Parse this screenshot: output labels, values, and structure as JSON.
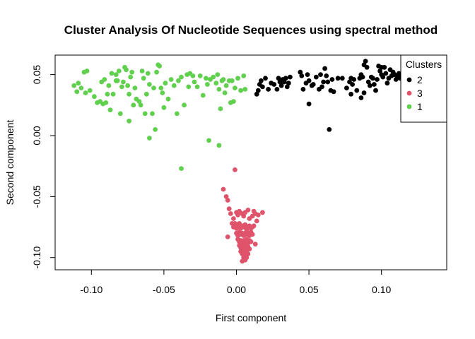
{
  "chart_data": {
    "type": "scatter",
    "title": "Cluster Analysis Of Nucleotide Sequences using spectral method",
    "xlabel": "First component",
    "ylabel": "Second component",
    "xlim": [
      -0.125,
      0.145
    ],
    "ylim": [
      -0.11,
      0.066
    ],
    "x_ticks": [
      -0.1,
      -0.05,
      0.0,
      0.05,
      0.1
    ],
    "x_tick_labels": [
      "-0.10",
      "-0.05",
      "0.00",
      "0.05",
      "0.10"
    ],
    "y_ticks": [
      -0.1,
      -0.05,
      0.0,
      0.05
    ],
    "y_tick_labels": [
      "-0.10",
      "-0.05",
      "0.00",
      "0.05"
    ],
    "grid": false,
    "legend": {
      "title": "Clusters",
      "position": "top-right",
      "order": [
        "2",
        "3",
        "1"
      ]
    },
    "series": [
      {
        "name": "1",
        "color": "#61D04F",
        "points": [
          [
            -0.112,
            0.041
          ],
          [
            -0.11,
            0.036
          ],
          [
            -0.109,
            0.043
          ],
          [
            -0.107,
            0.039
          ],
          [
            -0.104,
            0.035
          ],
          [
            -0.101,
            0.037
          ],
          [
            -0.105,
            0.052
          ],
          [
            -0.103,
            0.053
          ],
          [
            -0.098,
            0.032
          ],
          [
            -0.094,
            0.028
          ],
          [
            -0.092,
            0.026
          ],
          [
            -0.09,
            0.027
          ],
          [
            -0.093,
            0.044
          ],
          [
            -0.091,
            0.046
          ],
          [
            -0.088,
            0.041
          ],
          [
            -0.089,
            0.034
          ],
          [
            -0.087,
            0.021
          ],
          [
            -0.085,
            0.034
          ],
          [
            -0.083,
            0.045
          ],
          [
            -0.083,
            0.05
          ],
          [
            -0.081,
            0.053
          ],
          [
            -0.079,
            0.04
          ],
          [
            -0.078,
            0.044
          ],
          [
            -0.077,
            0.056
          ],
          [
            -0.076,
            0.054
          ],
          [
            -0.074,
            0.034
          ],
          [
            -0.075,
            0.041
          ],
          [
            -0.073,
            0.048
          ],
          [
            -0.072,
            0.052
          ],
          [
            -0.071,
            0.025
          ],
          [
            -0.07,
            0.039
          ],
          [
            -0.069,
            0.03
          ],
          [
            -0.067,
            0.028
          ],
          [
            -0.065,
            0.053
          ],
          [
            -0.064,
            0.047
          ],
          [
            -0.062,
            0.034
          ],
          [
            -0.061,
            0.051
          ],
          [
            -0.06,
            0.042
          ],
          [
            -0.058,
            0.018
          ],
          [
            -0.057,
            0.039
          ],
          [
            -0.055,
            0.052
          ],
          [
            -0.054,
            0.058
          ],
          [
            -0.053,
            0.057
          ],
          [
            -0.052,
            0.039
          ],
          [
            -0.051,
            0.035
          ],
          [
            -0.05,
            0.023
          ],
          [
            -0.049,
            0.043
          ],
          [
            -0.047,
            0.03
          ],
          [
            -0.045,
            0.046
          ],
          [
            -0.043,
            0.041
          ],
          [
            -0.041,
            0.018
          ],
          [
            -0.04,
            0.045
          ],
          [
            -0.038,
            0.048
          ],
          [
            -0.036,
            0.025
          ],
          [
            -0.034,
            0.05
          ],
          [
            -0.032,
            0.051
          ],
          [
            -0.03,
            0.049
          ],
          [
            -0.029,
            0.044
          ],
          [
            -0.027,
            0.04
          ],
          [
            -0.025,
            0.049
          ],
          [
            -0.023,
            0.033
          ],
          [
            -0.021,
            0.047
          ],
          [
            -0.02,
            0.042
          ],
          [
            -0.018,
            0.046
          ],
          [
            -0.016,
            0.048
          ],
          [
            -0.014,
            0.043
          ],
          [
            -0.013,
            0.05
          ],
          [
            -0.012,
            0.038
          ],
          [
            -0.01,
            0.045
          ],
          [
            -0.009,
            0.046
          ],
          [
            -0.008,
            0.035
          ],
          [
            -0.007,
            0.041
          ],
          [
            -0.005,
            0.045
          ],
          [
            -0.003,
            0.045
          ],
          [
            -0.002,
            0.028
          ],
          [
            -0.001,
            0.039
          ],
          [
            0.001,
            0.047
          ],
          [
            0.003,
            0.037
          ],
          [
            0.005,
            0.049
          ],
          [
            0.006,
            0.038
          ],
          [
            -0.004,
            0.027
          ],
          [
            -0.066,
            0.025
          ],
          [
            -0.06,
            -0.002
          ],
          [
            -0.056,
            0.005
          ],
          [
            -0.063,
            0.018
          ],
          [
            -0.074,
            0.012
          ],
          [
            -0.08,
            0.018
          ],
          [
            -0.096,
            0.027
          ],
          [
            -0.019,
            -0.004
          ],
          [
            -0.012,
            -0.008
          ],
          [
            -0.038,
            -0.027
          ],
          [
            -0.086,
            0.051
          ],
          [
            -0.082,
            0.045
          ],
          [
            -0.011,
            0.022
          ],
          [
            -0.033,
            0.04
          ]
        ]
      },
      {
        "name": "2",
        "color": "#000000",
        "points": [
          [
            0.014,
            0.034
          ],
          [
            0.015,
            0.037
          ],
          [
            0.016,
            0.042
          ],
          [
            0.017,
            0.045
          ],
          [
            0.018,
            0.04
          ],
          [
            0.02,
            0.047
          ],
          [
            0.022,
            0.038
          ],
          [
            0.024,
            0.043
          ],
          [
            0.026,
            0.042
          ],
          [
            0.028,
            0.038
          ],
          [
            0.03,
            0.044
          ],
          [
            0.031,
            0.041
          ],
          [
            0.032,
            0.046
          ],
          [
            0.033,
            0.044
          ],
          [
            0.034,
            0.047
          ],
          [
            0.035,
            0.04
          ],
          [
            0.036,
            0.043
          ],
          [
            0.037,
            0.048
          ],
          [
            0.044,
            0.052
          ],
          [
            0.045,
            0.049
          ],
          [
            0.046,
            0.038
          ],
          [
            0.048,
            0.043
          ],
          [
            0.049,
            0.05
          ],
          [
            0.05,
            0.045
          ],
          [
            0.05,
            0.026
          ],
          [
            0.052,
            0.041
          ],
          [
            0.053,
            0.042
          ],
          [
            0.055,
            0.048
          ],
          [
            0.057,
            0.038
          ],
          [
            0.058,
            0.05
          ],
          [
            0.059,
            0.04
          ],
          [
            0.06,
            0.044
          ],
          [
            0.061,
            0.055
          ],
          [
            0.062,
            0.049
          ],
          [
            0.063,
            0.044
          ],
          [
            0.064,
            0.005
          ],
          [
            0.065,
            0.037
          ],
          [
            0.066,
            0.046
          ],
          [
            0.067,
            0.036
          ],
          [
            0.073,
            0.047
          ],
          [
            0.076,
            0.039
          ],
          [
            0.078,
            0.044
          ],
          [
            0.079,
            0.034
          ],
          [
            0.08,
            0.042
          ],
          [
            0.081,
            0.046
          ],
          [
            0.083,
            0.037
          ],
          [
            0.085,
            0.047
          ],
          [
            0.086,
            0.05
          ],
          [
            0.087,
            0.048
          ],
          [
            0.088,
            0.058
          ],
          [
            0.089,
            0.061
          ],
          [
            0.09,
            0.056
          ],
          [
            0.091,
            0.044
          ],
          [
            0.092,
            0.041
          ],
          [
            0.093,
            0.048
          ],
          [
            0.094,
            0.047
          ],
          [
            0.095,
            0.042
          ],
          [
            0.096,
            0.037
          ],
          [
            0.097,
            0.046
          ],
          [
            0.098,
            0.057
          ],
          [
            0.099,
            0.053
          ],
          [
            0.1,
            0.05
          ],
          [
            0.101,
            0.048
          ],
          [
            0.102,
            0.056
          ],
          [
            0.103,
            0.051
          ],
          [
            0.104,
            0.043
          ],
          [
            0.105,
            0.047
          ],
          [
            0.106,
            0.054
          ],
          [
            0.107,
            0.049
          ],
          [
            0.108,
            0.052
          ],
          [
            0.109,
            0.05
          ],
          [
            0.11,
            0.046
          ],
          [
            0.111,
            0.048
          ],
          [
            0.112,
            0.051
          ],
          [
            0.113,
            0.047
          ],
          [
            0.114,
            0.049
          ],
          [
            0.115,
            0.052
          ],
          [
            0.116,
            0.048
          ],
          [
            0.118,
            0.05
          ],
          [
            0.088,
            0.035
          ],
          [
            0.079,
            0.047
          ],
          [
            0.07,
            0.047
          ],
          [
            0.086,
            0.031
          ],
          [
            0.1,
            0.056
          ],
          [
            0.029,
            0.047
          ]
        ]
      },
      {
        "name": "3",
        "color": "#DF536B",
        "points": [
          [
            -0.001,
            -0.028
          ],
          [
            -0.009,
            -0.044
          ],
          [
            -0.007,
            -0.05
          ],
          [
            -0.006,
            -0.053
          ],
          [
            -0.005,
            -0.06
          ],
          [
            -0.004,
            -0.064
          ],
          [
            0.0,
            -0.063
          ],
          [
            0.001,
            -0.065
          ],
          [
            0.002,
            -0.062
          ],
          [
            0.004,
            -0.064
          ],
          [
            0.005,
            -0.066
          ],
          [
            0.006,
            -0.063
          ],
          [
            0.008,
            -0.061
          ],
          [
            0.009,
            -0.068
          ],
          [
            0.011,
            -0.066
          ],
          [
            0.012,
            -0.062
          ],
          [
            0.013,
            -0.064
          ],
          [
            0.015,
            -0.065
          ],
          [
            0.018,
            -0.063
          ],
          [
            -0.003,
            -0.072
          ],
          [
            -0.002,
            -0.075
          ],
          [
            -0.001,
            -0.072
          ],
          [
            0.0,
            -0.076
          ],
          [
            0.001,
            -0.074
          ],
          [
            0.002,
            -0.072
          ],
          [
            0.003,
            -0.076
          ],
          [
            0.004,
            -0.074
          ],
          [
            0.005,
            -0.075
          ],
          [
            0.006,
            -0.073
          ],
          [
            0.007,
            -0.077
          ],
          [
            0.008,
            -0.075
          ],
          [
            0.009,
            -0.074
          ],
          [
            0.01,
            -0.076
          ],
          [
            0.011,
            -0.075
          ],
          [
            0.012,
            -0.074
          ],
          [
            0.0,
            -0.08
          ],
          [
            0.001,
            -0.082
          ],
          [
            0.002,
            -0.079
          ],
          [
            0.003,
            -0.081
          ],
          [
            0.004,
            -0.08
          ],
          [
            0.005,
            -0.082
          ],
          [
            0.006,
            -0.08
          ],
          [
            0.007,
            -0.081
          ],
          [
            0.008,
            -0.08
          ],
          [
            0.009,
            -0.082
          ],
          [
            0.01,
            -0.079
          ],
          [
            0.011,
            -0.081
          ],
          [
            0.001,
            -0.085
          ],
          [
            0.002,
            -0.087
          ],
          [
            0.003,
            -0.086
          ],
          [
            0.004,
            -0.088
          ],
          [
            0.005,
            -0.086
          ],
          [
            0.006,
            -0.087
          ],
          [
            0.007,
            -0.085
          ],
          [
            0.008,
            -0.088
          ],
          [
            0.009,
            -0.086
          ],
          [
            0.01,
            -0.087
          ],
          [
            0.002,
            -0.09
          ],
          [
            0.003,
            -0.092
          ],
          [
            0.004,
            -0.091
          ],
          [
            0.005,
            -0.093
          ],
          [
            0.006,
            -0.09
          ],
          [
            0.007,
            -0.092
          ],
          [
            0.008,
            -0.091
          ],
          [
            0.009,
            -0.093
          ],
          [
            0.003,
            -0.095
          ],
          [
            0.004,
            -0.097
          ],
          [
            0.005,
            -0.096
          ],
          [
            0.006,
            -0.098
          ],
          [
            0.007,
            -0.095
          ],
          [
            0.008,
            -0.097
          ],
          [
            0.005,
            -0.1
          ],
          [
            0.006,
            -0.102
          ],
          [
            0.007,
            -0.1
          ],
          [
            0.004,
            -0.103
          ],
          [
            -0.006,
            -0.083
          ],
          [
            0.013,
            -0.089
          ],
          [
            -0.002,
            -0.068
          ],
          [
            0.014,
            -0.07
          ]
        ]
      }
    ]
  }
}
